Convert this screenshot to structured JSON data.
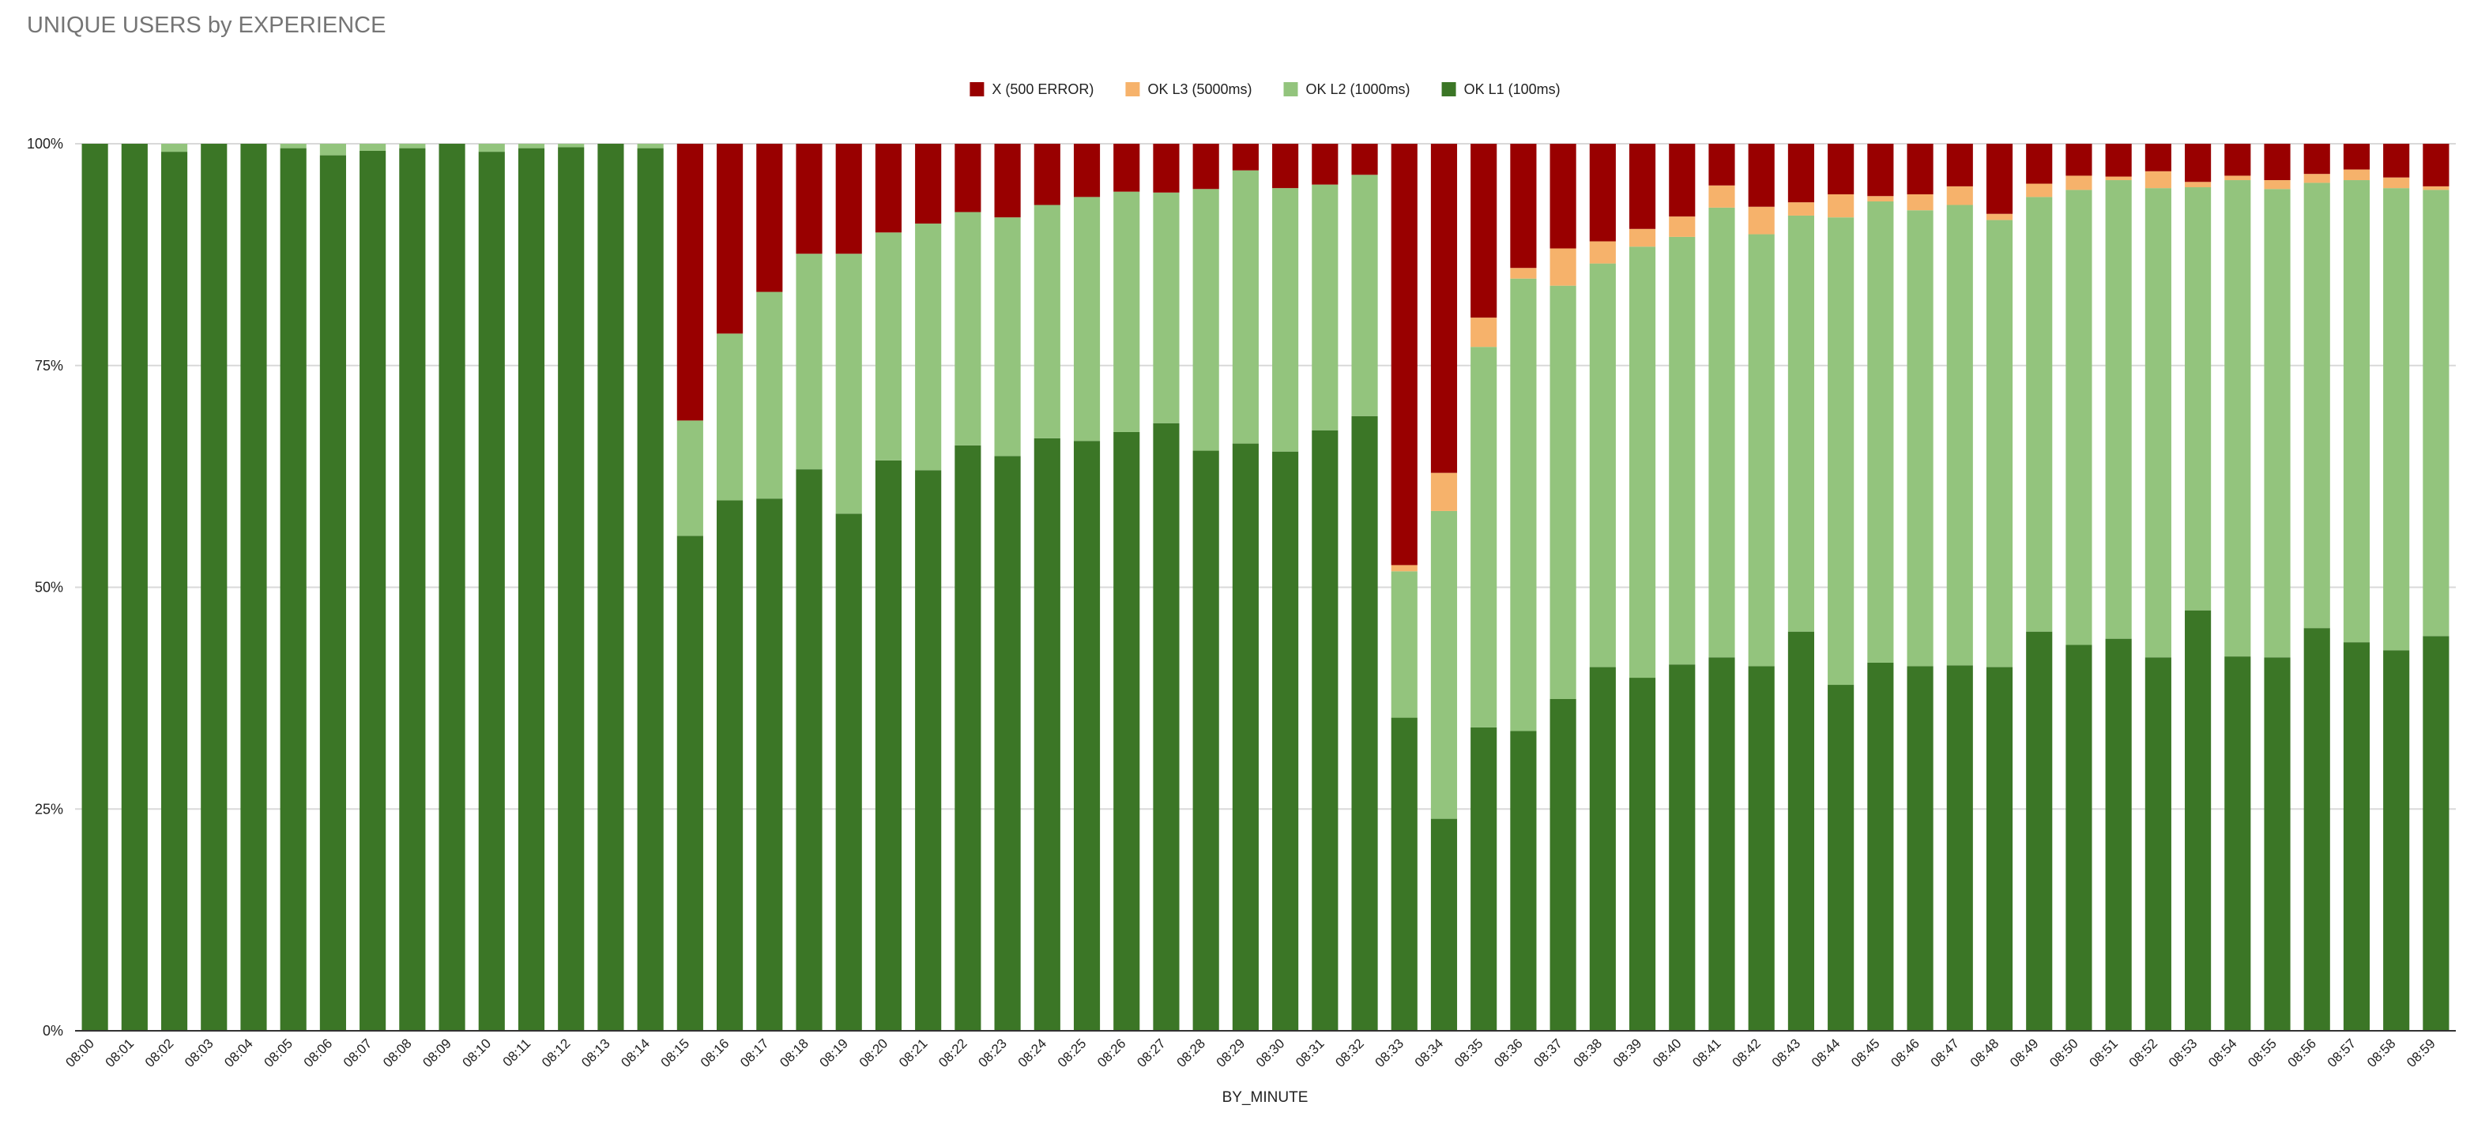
{
  "chart_data": {
    "type": "bar",
    "stacked": true,
    "normalized": true,
    "title": "UNIQUE USERS by EXPERIENCE",
    "xlabel": "BY_MINUTE",
    "ylabel": "",
    "ylim": [
      0,
      100
    ],
    "yticks": [
      "0%",
      "25%",
      "50%",
      "75%",
      "100%"
    ],
    "legend_position": "top",
    "grid": true,
    "categories": [
      "08:00",
      "08:01",
      "08:02",
      "08:03",
      "08:04",
      "08:05",
      "08:06",
      "08:07",
      "08:08",
      "08:09",
      "08:10",
      "08:11",
      "08:12",
      "08:13",
      "08:14",
      "08:15",
      "08:16",
      "08:17",
      "08:18",
      "08:19",
      "08:20",
      "08:21",
      "08:22",
      "08:23",
      "08:24",
      "08:25",
      "08:26",
      "08:27",
      "08:28",
      "08:29",
      "08:30",
      "08:31",
      "08:32",
      "08:33",
      "08:34",
      "08:35",
      "08:36",
      "08:37",
      "08:38",
      "08:39",
      "08:40",
      "08:41",
      "08:42",
      "08:43",
      "08:44",
      "08:45",
      "08:46",
      "08:47",
      "08:48",
      "08:49",
      "08:50",
      "08:51",
      "08:52",
      "08:53",
      "08:54",
      "08:55",
      "08:56",
      "08:57",
      "08:58",
      "08:59"
    ],
    "series": [
      {
        "name": "OK L1 (100ms)",
        "color": "#3b7626",
        "values": [
          100,
          100,
          99.1,
          100,
          100,
          99.5,
          98.7,
          99.2,
          99.5,
          100,
          99.1,
          99.5,
          99.6,
          100,
          99.5,
          55.8,
          59.8,
          60,
          63.3,
          58.3,
          64.3,
          63.2,
          66,
          64.8,
          66.8,
          66.5,
          67.5,
          68.5,
          65.4,
          66.2,
          65.3,
          67.7,
          69.3,
          35.3,
          23.9,
          34.2,
          33.8,
          37.4,
          41,
          39.8,
          41.3,
          42.1,
          41.1,
          45,
          39,
          41.5,
          41.1,
          41.2,
          41,
          45,
          43.5,
          44.2,
          42.1,
          47.4,
          42.2,
          42.1,
          45.4,
          43.8,
          42.9,
          44.5
        ]
      },
      {
        "name": "OK L2 (1000ms)",
        "color": "#93c47d",
        "values": [
          0,
          0,
          0.9,
          0,
          0,
          0.5,
          1.3,
          0.8,
          0.5,
          0,
          0.9,
          0.5,
          0.4,
          0,
          0.5,
          13,
          18.8,
          23.3,
          24.3,
          29.3,
          25.7,
          27.8,
          26.3,
          26.9,
          26.3,
          27.5,
          27.1,
          26,
          29.5,
          30.8,
          29.7,
          27.7,
          27.2,
          16.5,
          34.7,
          42.9,
          51,
          46.6,
          45.5,
          48.6,
          48.2,
          50.7,
          48.7,
          46.9,
          52.7,
          52,
          51.4,
          51.9,
          50.4,
          49,
          51.3,
          51.7,
          52.9,
          47.7,
          53.7,
          52.8,
          50.2,
          52.1,
          52.1,
          50.3
        ]
      },
      {
        "name": "OK L3 (5000ms)",
        "color": "#f6b26b",
        "values": [
          0,
          0,
          0,
          0,
          0,
          0,
          0,
          0,
          0,
          0,
          0,
          0,
          0,
          0,
          0,
          0,
          0,
          0,
          0,
          0,
          0,
          0,
          0,
          0,
          0,
          0,
          0,
          0,
          0,
          0,
          0,
          0,
          0,
          0.7,
          4.3,
          3.3,
          1.2,
          4.2,
          2.5,
          2,
          2.3,
          2.5,
          3.1,
          1.5,
          2.6,
          0.6,
          1.8,
          2.1,
          0.7,
          1.5,
          1.6,
          0.4,
          1.9,
          0.6,
          0.5,
          1,
          1,
          1.2,
          1.2,
          0.4
        ]
      },
      {
        "name": "X (500 ERROR)",
        "color": "#990000",
        "values": [
          0,
          0,
          0,
          0,
          0,
          0,
          0,
          0,
          0,
          0,
          0,
          0,
          0,
          0,
          0,
          31.2,
          21.4,
          16.7,
          12.4,
          12.4,
          10,
          9,
          7.7,
          8.3,
          6.9,
          6,
          5.4,
          5.5,
          5.1,
          3,
          5,
          4.6,
          3.5,
          47.5,
          37.1,
          19.6,
          14,
          11.8,
          11,
          9.6,
          8.2,
          4.7,
          7.1,
          6.6,
          5.7,
          5.9,
          5.7,
          4.8,
          7.9,
          4.5,
          3.6,
          3.7,
          3.1,
          4.3,
          3.6,
          4.1,
          3.4,
          2.9,
          3.8,
          4.8
        ]
      }
    ]
  }
}
